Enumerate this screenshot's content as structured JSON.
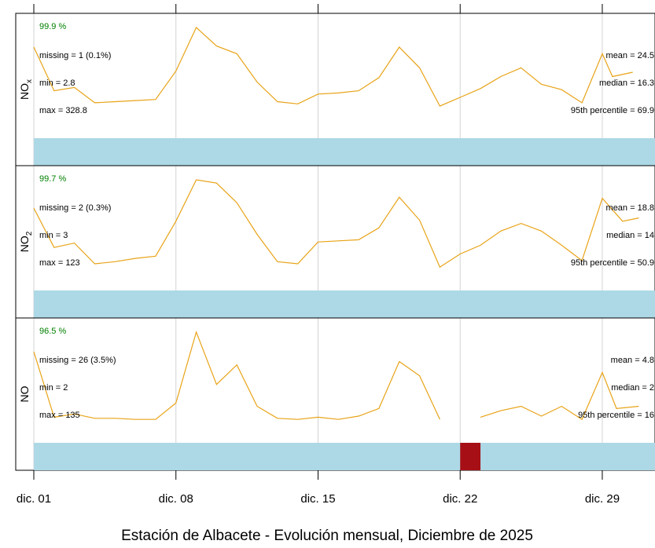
{
  "colors": {
    "line": "#e8a317",
    "bar": "#add8e6",
    "missing_bar": "#a50f15",
    "grid": "#d3d3d3",
    "pct_text": "#008000"
  },
  "chart_data": {
    "type": "line",
    "title": "Estación de Albacete - Evolución mensual, Diciembre de 2025",
    "xlim": [
      0.5,
      30.8
    ],
    "x_ticks": [
      {
        "day": 1,
        "label": "dic. 01"
      },
      {
        "day": 8,
        "label": "dic. 08"
      },
      {
        "day": 15,
        "label": "dic. 15"
      },
      {
        "day": 22,
        "label": "dic. 22"
      },
      {
        "day": 29,
        "label": "dic. 29"
      }
    ],
    "grid": "vertical",
    "panels": [
      {
        "ylabel": "NO",
        "ylabel_sub": "x",
        "ylim": [
          0,
          100
        ],
        "pct": "99.9 %",
        "stats_left": [
          "missing = 1 (0.1%)",
          "min = 2.8",
          "max = 328.8"
        ],
        "stats_right": [
          "mean = 24.5",
          "median = 16.3",
          "95th percentile = 69.9"
        ],
        "missing_days": [],
        "series": [
          {
            "x": 1,
            "y": 82
          },
          {
            "x": 2,
            "y": 42
          },
          {
            "x": 3,
            "y": 45
          },
          {
            "x": 4,
            "y": 31
          },
          {
            "x": 5,
            "y": 32
          },
          {
            "x": 6,
            "y": 33
          },
          {
            "x": 7,
            "y": 34
          },
          {
            "x": 8,
            "y": 60
          },
          {
            "x": 9,
            "y": 100
          },
          {
            "x": 10,
            "y": 83
          },
          {
            "x": 11,
            "y": 76
          },
          {
            "x": 12,
            "y": 50
          },
          {
            "x": 13,
            "y": 32
          },
          {
            "x": 14,
            "y": 30
          },
          {
            "x": 15,
            "y": 39
          },
          {
            "x": 16,
            "y": 40
          },
          {
            "x": 17,
            "y": 42
          },
          {
            "x": 18,
            "y": 54
          },
          {
            "x": 19,
            "y": 82
          },
          {
            "x": 20,
            "y": 63
          },
          {
            "x": 21,
            "y": 28
          },
          {
            "x": 22,
            "y": 36
          },
          {
            "x": 23,
            "y": 44
          },
          {
            "x": 24,
            "y": 55
          },
          {
            "x": 25,
            "y": 63
          },
          {
            "x": 26,
            "y": 48
          },
          {
            "x": 27,
            "y": 43
          },
          {
            "x": 28,
            "y": 31
          },
          {
            "x": 29,
            "y": 76
          },
          {
            "x": 29.5,
            "y": 55
          },
          {
            "x": 30.5,
            "y": 59
          }
        ]
      },
      {
        "ylabel": "NO",
        "ylabel_sub": "2",
        "ylim": [
          0,
          100
        ],
        "pct": "99.7 %",
        "stats_left": [
          "missing = 2 (0.3%)",
          "min = 3",
          "max = 123"
        ],
        "stats_right": [
          "mean = 18.8",
          "median = 14",
          "95th percentile = 50.9"
        ],
        "missing_days": [],
        "series": [
          {
            "x": 1,
            "y": 74
          },
          {
            "x": 2,
            "y": 38
          },
          {
            "x": 3,
            "y": 42
          },
          {
            "x": 4,
            "y": 23
          },
          {
            "x": 5,
            "y": 25
          },
          {
            "x": 6,
            "y": 28
          },
          {
            "x": 7,
            "y": 30
          },
          {
            "x": 8,
            "y": 62
          },
          {
            "x": 9,
            "y": 100
          },
          {
            "x": 10,
            "y": 97
          },
          {
            "x": 11,
            "y": 79
          },
          {
            "x": 12,
            "y": 50
          },
          {
            "x": 13,
            "y": 25
          },
          {
            "x": 14,
            "y": 23
          },
          {
            "x": 15,
            "y": 43
          },
          {
            "x": 16,
            "y": 44
          },
          {
            "x": 17,
            "y": 45
          },
          {
            "x": 18,
            "y": 56
          },
          {
            "x": 19,
            "y": 84
          },
          {
            "x": 20,
            "y": 63
          },
          {
            "x": 21,
            "y": 20
          },
          {
            "x": 22,
            "y": 32
          },
          {
            "x": 23,
            "y": 40
          },
          {
            "x": 24,
            "y": 53
          },
          {
            "x": 25,
            "y": 60
          },
          {
            "x": 26,
            "y": 53
          },
          {
            "x": 27,
            "y": 40
          },
          {
            "x": 28,
            "y": 26
          },
          {
            "x": 29,
            "y": 83
          },
          {
            "x": 30,
            "y": 62
          },
          {
            "x": 30.8,
            "y": 65
          }
        ]
      },
      {
        "ylabel": "NO",
        "ylabel_sub": "",
        "ylim": [
          0,
          100
        ],
        "pct": "96.5 %",
        "stats_left": [
          "missing = 26 (3.5%)",
          "min = 2",
          "max = 135"
        ],
        "stats_right": [
          "mean = 4.8",
          "median = 2",
          "95th percentile = 16"
        ],
        "missing_days": [
          [
            22,
            23
          ]
        ],
        "series": [
          {
            "x": 1,
            "y": 82
          },
          {
            "x": 2,
            "y": 22
          },
          {
            "x": 3,
            "y": 25
          },
          {
            "x": 4,
            "y": 21
          },
          {
            "x": 5,
            "y": 21
          },
          {
            "x": 6,
            "y": 20
          },
          {
            "x": 7,
            "y": 20
          },
          {
            "x": 8,
            "y": 35
          },
          {
            "x": 9,
            "y": 100
          },
          {
            "x": 10,
            "y": 52
          },
          {
            "x": 11,
            "y": 70
          },
          {
            "x": 12,
            "y": 32
          },
          {
            "x": 13,
            "y": 21
          },
          {
            "x": 14,
            "y": 20
          },
          {
            "x": 15,
            "y": 22
          },
          {
            "x": 16,
            "y": 20
          },
          {
            "x": 17,
            "y": 23
          },
          {
            "x": 18,
            "y": 30
          },
          {
            "x": 19,
            "y": 73
          },
          {
            "x": 20,
            "y": 60
          },
          {
            "x": 21,
            "y": 20
          },
          {
            "x": 23,
            "y": 22
          },
          {
            "x": 24,
            "y": 28
          },
          {
            "x": 25,
            "y": 32
          },
          {
            "x": 26,
            "y": 23
          },
          {
            "x": 27,
            "y": 32
          },
          {
            "x": 28,
            "y": 20
          },
          {
            "x": 29,
            "y": 63
          },
          {
            "x": 29.7,
            "y": 30
          },
          {
            "x": 30.8,
            "y": 32
          }
        ]
      }
    ]
  }
}
